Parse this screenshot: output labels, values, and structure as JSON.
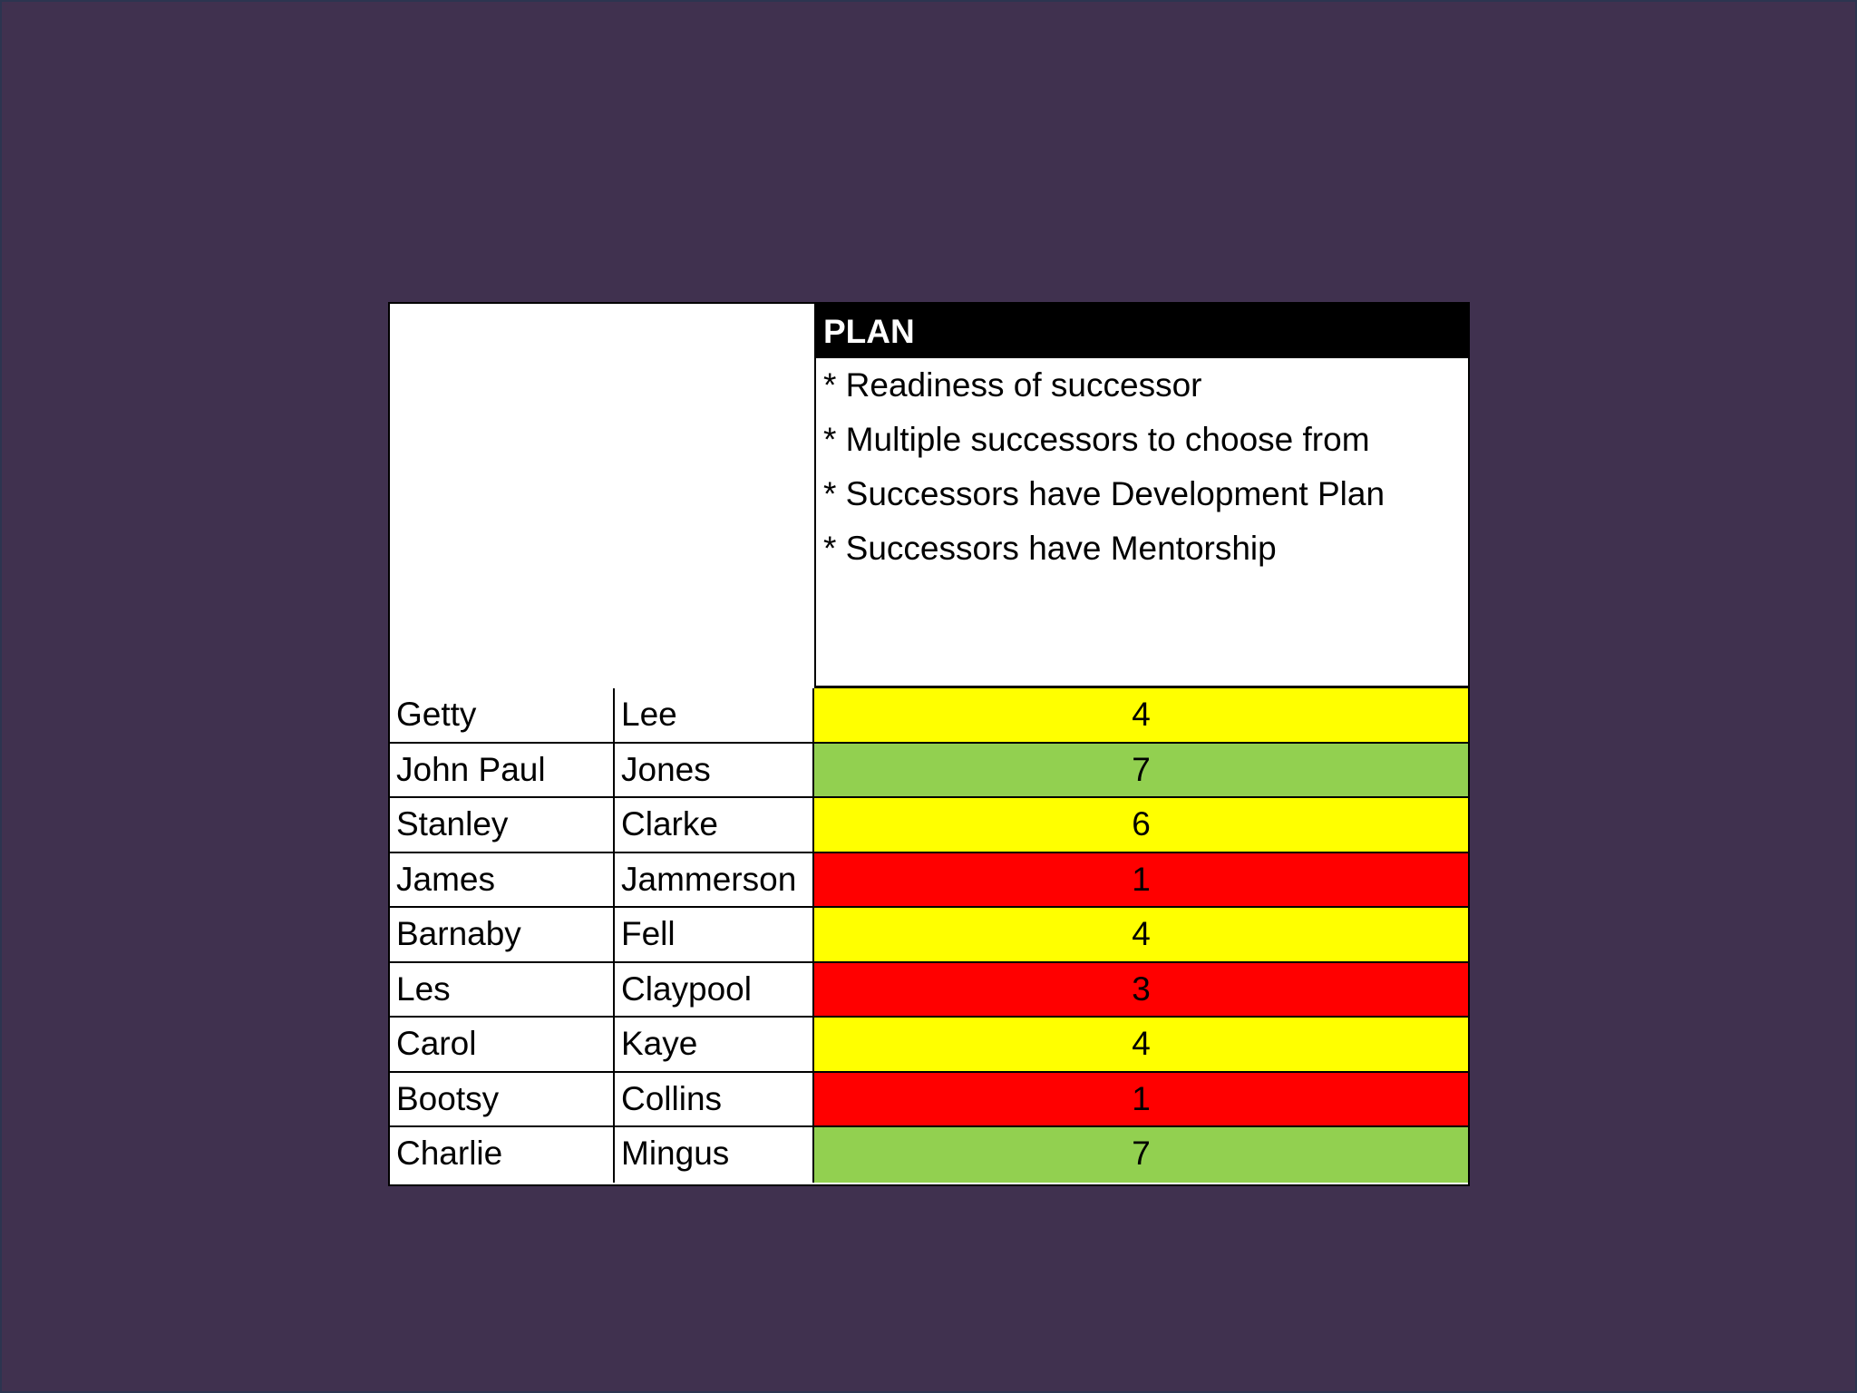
{
  "plan": {
    "title": "PLAN",
    "criteria": [
      "* Readiness of successor",
      "* Multiple successors to choose from",
      "* Successors have Development Plan",
      "* Successors have Mentorship"
    ]
  },
  "rows": [
    {
      "first": "Getty",
      "last": "Lee",
      "score": "4",
      "color": "#ffff00"
    },
    {
      "first": "John Paul",
      "last": "Jones",
      "score": "7",
      "color": "#92d050"
    },
    {
      "first": "Stanley",
      "last": "Clarke",
      "score": "6",
      "color": "#ffff00"
    },
    {
      "first": "James",
      "last": "Jammerson",
      "score": "1",
      "color": "#ff0000"
    },
    {
      "first": "Barnaby",
      "last": "Fell",
      "score": "4",
      "color": "#ffff00"
    },
    {
      "first": "Les",
      "last": "Claypool",
      "score": "3",
      "color": "#ff0000"
    },
    {
      "first": "Carol",
      "last": "Kaye",
      "score": "4",
      "color": "#ffff00"
    },
    {
      "first": "Bootsy",
      "last": "Collins",
      "score": "1",
      "color": "#ff0000"
    },
    {
      "first": "Charlie",
      "last": "Mingus",
      "score": "7",
      "color": "#92d050"
    }
  ]
}
